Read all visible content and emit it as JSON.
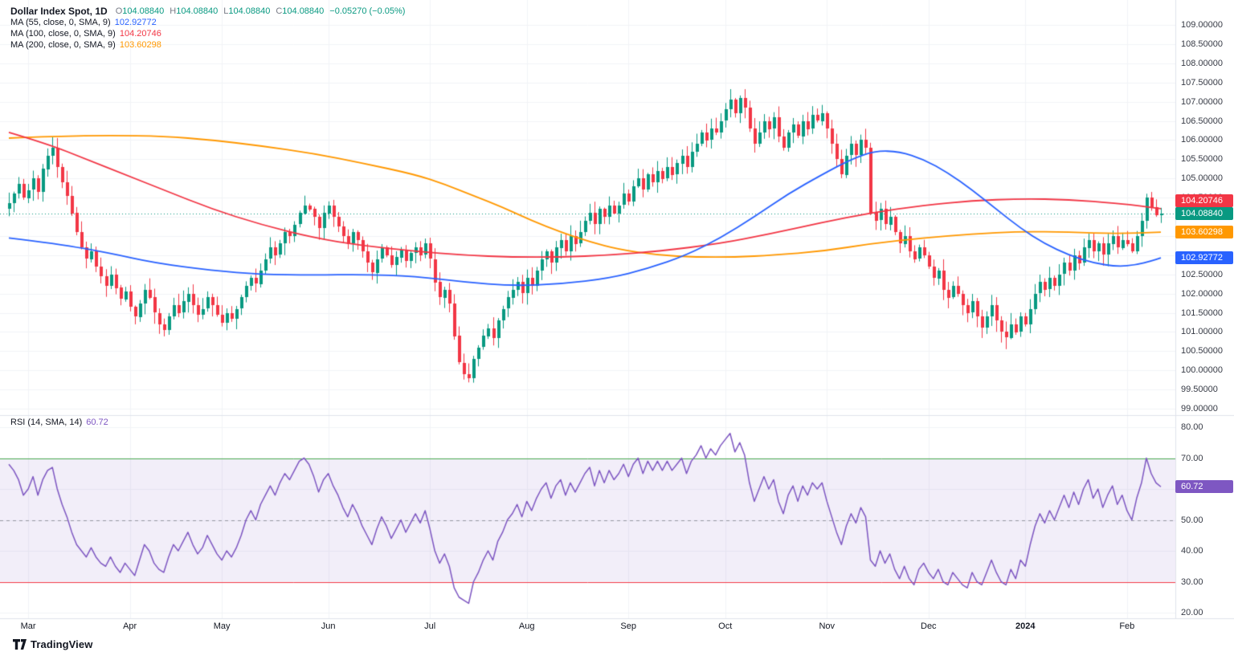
{
  "header": {
    "symbol": "Dollar Index Spot, 1D",
    "ohlc": {
      "o_label": "O",
      "o": "104.08840",
      "h_label": "H",
      "h": "104.08840",
      "l_label": "L",
      "l": "104.08840",
      "c_label": "C",
      "c": "104.08840",
      "change": "−0.05270 (−0.05%)",
      "color": "#089981"
    },
    "ma_rows": [
      {
        "label": "MA (55, close, 0, SMA, 9)",
        "value": "102.92772",
        "color": "#2962ff"
      },
      {
        "label": "MA (100, close, 0, SMA, 9)",
        "value": "104.20746",
        "color": "#f23645"
      },
      {
        "label": "MA (200, close, 0, SMA, 9)",
        "value": "103.60298",
        "color": "#ff9800"
      }
    ],
    "rsi_row": {
      "label": "RSI (14, SMA, 14)",
      "value": "60.72",
      "color": "#7e57c2"
    }
  },
  "footer": {
    "logo_text": "TradingView"
  },
  "chart_data": {
    "type": "candlestick",
    "title": "Dollar Index Spot, 1D",
    "timeframe": "1D",
    "last_price": 104.0884,
    "colors": {
      "up": "#089981",
      "down": "#f23645",
      "grid": "#f2f4f7",
      "band": "rgba(126,87,194,0.10)",
      "ob_line": "#4caf50",
      "os_line": "#f23645",
      "mid_line": "#9598a1",
      "ma55": "#2962ff",
      "ma100": "#f23645",
      "ma200": "#ff9800",
      "rsi": "#7e57c2"
    },
    "price_axis": {
      "range": [
        99.0,
        109.0
      ],
      "ticks": [
        "109.00000",
        "108.50000",
        "108.00000",
        "107.50000",
        "107.00000",
        "106.50000",
        "106.00000",
        "105.50000",
        "105.00000",
        "104.50000",
        "104.00000",
        "103.50000",
        "103.00000",
        "102.50000",
        "102.00000",
        "101.50000",
        "101.00000",
        "100.50000",
        "100.00000",
        "99.50000",
        "99.00000"
      ],
      "tags": [
        {
          "text": "104.20746",
          "value": 104.20746,
          "color": "#f23645"
        },
        {
          "text": "104.08840",
          "value": 104.0884,
          "color": "#089981"
        },
        {
          "text": "103.60298",
          "value": 103.60298,
          "color": "#ff9800"
        },
        {
          "text": "102.92772",
          "value": 102.92772,
          "color": "#2962ff"
        }
      ]
    },
    "rsi_axis": {
      "range": [
        20,
        80
      ],
      "ticks": [
        "80.00",
        "70.00",
        "60.00",
        "50.00",
        "40.00",
        "30.00",
        "20.00"
      ],
      "tag": {
        "text": "60.72",
        "value": 60.72,
        "color": "#7e57c2"
      }
    },
    "x_labels": [
      {
        "label": "Mar",
        "day": 4
      },
      {
        "label": "Apr",
        "day": 25
      },
      {
        "label": "May",
        "day": 44
      },
      {
        "label": "Jun",
        "day": 66
      },
      {
        "label": "Jul",
        "day": 87
      },
      {
        "label": "Aug",
        "day": 107
      },
      {
        "label": "Sep",
        "day": 128
      },
      {
        "label": "Oct",
        "day": 148
      },
      {
        "label": "Nov",
        "day": 169
      },
      {
        "label": "Dec",
        "day": 190
      },
      {
        "label": "2024",
        "day": 210,
        "bold": true
      },
      {
        "label": "Feb",
        "day": 231
      }
    ],
    "candles": {
      "first_open": 104.2,
      "closes": [
        104.35,
        104.6,
        104.85,
        104.5,
        104.7,
        105.0,
        104.65,
        105.25,
        105.6,
        105.8,
        105.3,
        104.9,
        104.55,
        104.1,
        103.6,
        103.2,
        102.9,
        103.1,
        102.7,
        102.45,
        102.2,
        102.5,
        102.15,
        101.85,
        102.05,
        101.65,
        101.4,
        101.75,
        102.1,
        101.9,
        101.5,
        101.2,
        101.05,
        101.4,
        101.7,
        101.5,
        101.8,
        102.0,
        101.7,
        101.45,
        101.6,
        101.9,
        101.7,
        101.45,
        101.25,
        101.5,
        101.35,
        101.6,
        101.9,
        102.2,
        102.4,
        102.25,
        102.6,
        102.9,
        103.2,
        103.0,
        103.3,
        103.6,
        103.5,
        103.8,
        104.1,
        104.3,
        104.2,
        104.0,
        103.7,
        104.1,
        104.3,
        104.0,
        103.75,
        103.5,
        103.3,
        103.6,
        103.4,
        103.1,
        102.8,
        102.55,
        102.9,
        103.2,
        103.0,
        102.75,
        102.95,
        103.15,
        102.85,
        103.05,
        103.2,
        103.0,
        103.3,
        102.9,
        102.3,
        101.9,
        102.1,
        101.75,
        100.9,
        100.2,
        99.9,
        99.8,
        100.3,
        100.6,
        100.9,
        101.1,
        100.85,
        101.3,
        101.6,
        101.9,
        102.1,
        102.3,
        102.0,
        102.4,
        102.2,
        102.6,
        102.9,
        103.1,
        102.8,
        103.2,
        103.4,
        103.1,
        103.5,
        103.3,
        103.6,
        103.9,
        104.1,
        103.8,
        104.2,
        104.0,
        104.3,
        104.1,
        104.3,
        104.6,
        104.4,
        104.8,
        105.0,
        104.7,
        105.1,
        104.9,
        105.2,
        105.0,
        105.3,
        105.1,
        105.4,
        105.6,
        105.3,
        105.7,
        105.9,
        106.2,
        106.0,
        106.3,
        106.2,
        106.5,
        106.8,
        107.05,
        106.7,
        107.1,
        106.85,
        106.3,
        105.9,
        106.2,
        106.5,
        106.3,
        106.6,
        106.1,
        105.8,
        106.2,
        106.4,
        106.1,
        106.5,
        106.3,
        106.65,
        106.5,
        106.7,
        106.3,
        105.9,
        105.5,
        105.1,
        105.6,
        105.9,
        105.6,
        106.0,
        105.8,
        104.1,
        103.9,
        104.2,
        103.8,
        104.0,
        103.6,
        103.3,
        103.5,
        103.1,
        102.9,
        103.2,
        103.0,
        102.7,
        102.4,
        102.6,
        102.1,
        101.9,
        102.2,
        102.0,
        101.7,
        101.5,
        101.8,
        101.4,
        101.1,
        101.4,
        101.7,
        101.3,
        101.0,
        100.85,
        101.2,
        101.0,
        101.4,
        101.2,
        101.6,
        102.0,
        102.3,
        102.1,
        102.4,
        102.2,
        102.5,
        102.8,
        102.6,
        103.0,
        102.8,
        103.2,
        103.4,
        103.1,
        103.3,
        103.0,
        103.3,
        103.5,
        103.2,
        103.4,
        103.3,
        103.1,
        103.5,
        103.9,
        104.5,
        104.25,
        104.05,
        104.09
      ]
    },
    "ma_lines": [
      {
        "name": "MA 55",
        "color": "#2962ff",
        "points": [
          [
            0,
            103.45
          ],
          [
            10,
            103.3
          ],
          [
            21,
            103.05
          ],
          [
            30,
            102.8
          ],
          [
            42,
            102.6
          ],
          [
            52,
            102.5
          ],
          [
            63,
            102.48
          ],
          [
            73,
            102.5
          ],
          [
            84,
            102.45
          ],
          [
            94,
            102.3
          ],
          [
            104,
            102.2
          ],
          [
            114,
            102.25
          ],
          [
            124,
            102.4
          ],
          [
            132,
            102.65
          ],
          [
            140,
            103.0
          ],
          [
            147,
            103.45
          ],
          [
            154,
            104.0
          ],
          [
            161,
            104.6
          ],
          [
            168,
            105.1
          ],
          [
            174,
            105.5
          ],
          [
            179,
            105.72
          ],
          [
            184,
            105.7
          ],
          [
            189,
            105.5
          ],
          [
            194,
            105.15
          ],
          [
            199,
            104.7
          ],
          [
            204,
            104.2
          ],
          [
            209,
            103.7
          ],
          [
            214,
            103.3
          ],
          [
            219,
            103.0
          ],
          [
            224,
            102.8
          ],
          [
            229,
            102.7
          ],
          [
            233,
            102.75
          ],
          [
            236,
            102.85
          ],
          [
            238,
            102.93
          ]
        ]
      },
      {
        "name": "MA 100",
        "color": "#f23645",
        "points": [
          [
            0,
            106.2
          ],
          [
            8,
            105.9
          ],
          [
            16,
            105.5
          ],
          [
            24,
            105.1
          ],
          [
            32,
            104.7
          ],
          [
            42,
            104.2
          ],
          [
            52,
            103.8
          ],
          [
            63,
            103.45
          ],
          [
            73,
            103.25
          ],
          [
            84,
            103.1
          ],
          [
            94,
            103.0
          ],
          [
            104,
            102.95
          ],
          [
            114,
            102.95
          ],
          [
            124,
            103.0
          ],
          [
            134,
            103.1
          ],
          [
            147,
            103.3
          ],
          [
            157,
            103.55
          ],
          [
            168,
            103.85
          ],
          [
            178,
            104.1
          ],
          [
            189,
            104.3
          ],
          [
            199,
            104.42
          ],
          [
            209,
            104.47
          ],
          [
            219,
            104.45
          ],
          [
            229,
            104.35
          ],
          [
            234,
            104.28
          ],
          [
            238,
            104.21
          ]
        ]
      },
      {
        "name": "MA 200",
        "color": "#ff9800",
        "points": [
          [
            0,
            106.05
          ],
          [
            10,
            106.1
          ],
          [
            21,
            106.12
          ],
          [
            32,
            106.1
          ],
          [
            42,
            106.0
          ],
          [
            52,
            105.85
          ],
          [
            63,
            105.65
          ],
          [
            73,
            105.4
          ],
          [
            84,
            105.1
          ],
          [
            90,
            104.85
          ],
          [
            96,
            104.55
          ],
          [
            102,
            104.25
          ],
          [
            108,
            103.9
          ],
          [
            114,
            103.6
          ],
          [
            120,
            103.35
          ],
          [
            126,
            103.15
          ],
          [
            134,
            103.0
          ],
          [
            142,
            102.95
          ],
          [
            150,
            102.95
          ],
          [
            158,
            103.0
          ],
          [
            168,
            103.1
          ],
          [
            178,
            103.3
          ],
          [
            189,
            103.45
          ],
          [
            199,
            103.55
          ],
          [
            209,
            103.62
          ],
          [
            219,
            103.6
          ],
          [
            229,
            103.56
          ],
          [
            238,
            103.6
          ]
        ]
      }
    ],
    "rsi": {
      "color": "#7e57c2",
      "overbought": 70,
      "oversold": 30,
      "midline": 50,
      "values": [
        68,
        66,
        63,
        58,
        60,
        64,
        58,
        63,
        66,
        67,
        60,
        55,
        51,
        46,
        42,
        40,
        38,
        41,
        38,
        36,
        35,
        38,
        35,
        33,
        36,
        34,
        32,
        37,
        42,
        40,
        36,
        34,
        33,
        38,
        42,
        40,
        43,
        46,
        42,
        39,
        41,
        45,
        42,
        39,
        37,
        40,
        38,
        41,
        45,
        50,
        53,
        50,
        55,
        58,
        61,
        58,
        62,
        65,
        63,
        66,
        69,
        70,
        68,
        64,
        59,
        63,
        65,
        61,
        58,
        54,
        51,
        55,
        52,
        48,
        45,
        42,
        47,
        51,
        48,
        44,
        47,
        50,
        46,
        49,
        52,
        49,
        53,
        47,
        40,
        36,
        39,
        35,
        28,
        25,
        24,
        23,
        30,
        33,
        37,
        40,
        37,
        43,
        46,
        50,
        52,
        55,
        51,
        56,
        53,
        57,
        60,
        62,
        57,
        61,
        63,
        58,
        62,
        59,
        62,
        65,
        67,
        61,
        66,
        62,
        66,
        63,
        65,
        68,
        64,
        68,
        70,
        65,
        69,
        66,
        69,
        66,
        69,
        66,
        68,
        70,
        65,
        69,
        71,
        74,
        70,
        73,
        71,
        74,
        76,
        78,
        72,
        75,
        71,
        62,
        56,
        60,
        64,
        60,
        63,
        56,
        52,
        58,
        61,
        56,
        61,
        58,
        62,
        60,
        62,
        56,
        51,
        46,
        42,
        48,
        52,
        49,
        54,
        51,
        37,
        35,
        40,
        36,
        39,
        34,
        31,
        35,
        31,
        29,
        34,
        36,
        33,
        31,
        34,
        30,
        29,
        33,
        31,
        29,
        28,
        33,
        30,
        29,
        33,
        37,
        33,
        30,
        29,
        34,
        31,
        37,
        35,
        42,
        48,
        52,
        49,
        53,
        50,
        54,
        58,
        54,
        59,
        55,
        60,
        63,
        57,
        60,
        54,
        58,
        61,
        55,
        58,
        53,
        50,
        57,
        62,
        70,
        65,
        62,
        60.72
      ]
    }
  }
}
